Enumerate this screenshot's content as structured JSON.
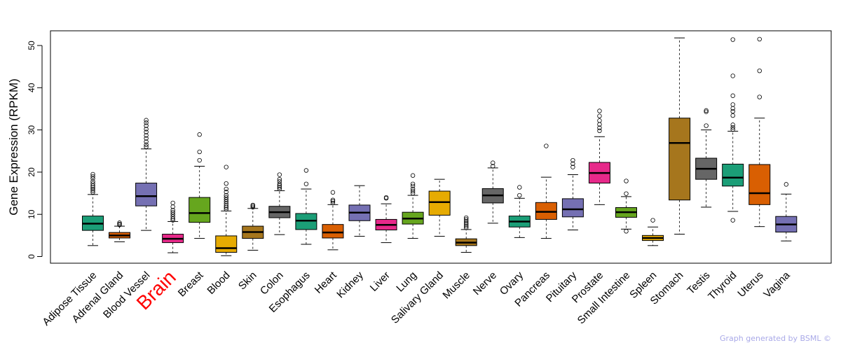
{
  "chart_data": {
    "type": "boxplot",
    "title": "",
    "ylabel": "Gene Expression (RPKM)",
    "xlabel": "",
    "ylim": [
      -1,
      54
    ],
    "yticks": [
      0,
      10,
      20,
      30,
      40,
      50
    ],
    "highlight_category": "Brain",
    "highlight_color": "#ff0000",
    "series": [
      {
        "name": "Adipose Tissue",
        "color": "#1b9e77",
        "min": 2.6,
        "q1": 6.2,
        "median": 7.8,
        "q3": 9.6,
        "max": 14.7,
        "outliers": [
          15.2,
          15.6,
          16.0,
          16.4,
          16.8,
          17.3,
          17.8,
          18.5,
          19.0,
          19.5
        ]
      },
      {
        "name": "Adrenal Gland",
        "color": "#d95f02",
        "min": 3.5,
        "q1": 4.4,
        "median": 5.0,
        "q3": 5.7,
        "max": 7.2,
        "outliers": [
          7.5,
          7.7,
          8.0
        ]
      },
      {
        "name": "Blood Vessel",
        "color": "#7570b3",
        "min": 6.2,
        "q1": 12.0,
        "median": 14.3,
        "q3": 17.4,
        "max": 25.5,
        "outliers": [
          26.0,
          26.5,
          27.2,
          28.0,
          28.7,
          29.5,
          30.2,
          31.0,
          31.7,
          32.3
        ]
      },
      {
        "name": "Brain",
        "color": "#e7298a",
        "min": 0.9,
        "q1": 3.3,
        "median": 4.2,
        "q3": 5.3,
        "max": 8.3,
        "outliers": [
          8.6,
          9.0,
          9.5,
          10.0,
          10.5,
          11.0,
          11.8,
          12.7
        ]
      },
      {
        "name": "Breast",
        "color": "#66a61e",
        "min": 4.3,
        "q1": 8.1,
        "median": 10.3,
        "q3": 14.0,
        "max": 21.4,
        "outliers": [
          22.8,
          24.8,
          28.9
        ]
      },
      {
        "name": "Blood",
        "color": "#e6ab02",
        "min": 0.2,
        "q1": 1.0,
        "median": 2.0,
        "q3": 4.9,
        "max": 10.8,
        "outliers": [
          11.2,
          11.6,
          12.0,
          12.5,
          13.0,
          13.5,
          14.0,
          14.5,
          15.3,
          16.0,
          17.3,
          21.2
        ]
      },
      {
        "name": "Skin",
        "color": "#a6761d",
        "min": 1.5,
        "q1": 4.3,
        "median": 5.8,
        "q3": 7.2,
        "max": 11.4,
        "outliers": [
          11.7,
          12.0,
          12.2
        ]
      },
      {
        "name": "Colon",
        "color": "#666666",
        "min": 5.2,
        "q1": 9.2,
        "median": 10.5,
        "q3": 11.9,
        "max": 15.6,
        "outliers": [
          16.0,
          16.4,
          16.8,
          17.2,
          17.8,
          18.3,
          19.4
        ]
      },
      {
        "name": "Esophagus",
        "color": "#1b9e77",
        "min": 2.9,
        "q1": 6.4,
        "median": 8.5,
        "q3": 10.2,
        "max": 16.0,
        "outliers": [
          17.2,
          20.4
        ]
      },
      {
        "name": "Heart",
        "color": "#d95f02",
        "min": 1.6,
        "q1": 4.4,
        "median": 5.7,
        "q3": 7.6,
        "max": 12.3,
        "outliers": [
          12.7,
          13.1,
          13.4,
          15.2
        ]
      },
      {
        "name": "Kidney",
        "color": "#7570b3",
        "min": 4.8,
        "q1": 8.5,
        "median": 10.4,
        "q3": 12.2,
        "max": 16.8,
        "outliers": []
      },
      {
        "name": "Liver",
        "color": "#e7298a",
        "min": 3.3,
        "q1": 6.3,
        "median": 7.5,
        "q3": 8.8,
        "max": 12.5,
        "outliers": [
          13.8,
          14.0
        ]
      },
      {
        "name": "Lung",
        "color": "#66a61e",
        "min": 4.3,
        "q1": 7.7,
        "median": 9.0,
        "q3": 10.5,
        "max": 14.5,
        "outliers": [
          15.0,
          15.5,
          16.0,
          16.7,
          17.2,
          19.2
        ]
      },
      {
        "name": "Salivary Gland",
        "color": "#e6ab02",
        "min": 4.8,
        "q1": 9.8,
        "median": 12.9,
        "q3": 15.5,
        "max": 18.3,
        "outliers": []
      },
      {
        "name": "Muscle",
        "color": "#a6761d",
        "min": 1.0,
        "q1": 2.6,
        "median": 3.3,
        "q3": 4.2,
        "max": 6.4,
        "outliers": [
          6.8,
          7.2,
          7.6,
          8.0,
          8.4,
          8.8,
          9.2
        ]
      },
      {
        "name": "Nerve",
        "color": "#666666",
        "min": 7.9,
        "q1": 12.7,
        "median": 14.5,
        "q3": 16.1,
        "max": 21.0,
        "outliers": [
          21.4,
          22.2
        ]
      },
      {
        "name": "Ovary",
        "color": "#1b9e77",
        "min": 4.5,
        "q1": 7.0,
        "median": 8.3,
        "q3": 9.6,
        "max": 13.8,
        "outliers": [
          14.5,
          16.4
        ]
      },
      {
        "name": "Pancreas",
        "color": "#d95f02",
        "min": 4.3,
        "q1": 8.8,
        "median": 10.6,
        "q3": 12.8,
        "max": 18.8,
        "outliers": [
          26.2
        ]
      },
      {
        "name": "Pituitary",
        "color": "#7570b3",
        "min": 6.3,
        "q1": 9.4,
        "median": 11.2,
        "q3": 13.7,
        "max": 19.4,
        "outliers": [
          21.2,
          22.0,
          22.8
        ]
      },
      {
        "name": "Prostate",
        "color": "#e7298a",
        "min": 12.3,
        "q1": 17.4,
        "median": 19.8,
        "q3": 22.3,
        "max": 28.4,
        "outliers": [
          29.8,
          30.5,
          31.3,
          32.2,
          33.3,
          34.5
        ]
      },
      {
        "name": "Small Intestine",
        "color": "#66a61e",
        "min": 6.5,
        "q1": 9.3,
        "median": 10.5,
        "q3": 11.6,
        "max": 14.2,
        "outliers": [
          6.0,
          14.9,
          17.9
        ]
      },
      {
        "name": "Spleen",
        "color": "#e6ab02",
        "min": 2.6,
        "q1": 3.8,
        "median": 4.4,
        "q3": 5.0,
        "max": 7.0,
        "outliers": [
          8.6
        ]
      },
      {
        "name": "Stomach",
        "color": "#a6761d",
        "min": 5.3,
        "q1": 13.4,
        "median": 26.9,
        "q3": 32.8,
        "max": 51.8,
        "outliers": []
      },
      {
        "name": "Testis",
        "color": "#666666",
        "min": 11.7,
        "q1": 18.3,
        "median": 20.8,
        "q3": 23.3,
        "max": 30.0,
        "outliers": [
          31.0,
          34.3,
          34.6
        ]
      },
      {
        "name": "Thyroid",
        "color": "#1b9e77",
        "min": 10.7,
        "q1": 16.7,
        "median": 18.7,
        "q3": 21.9,
        "max": 29.7,
        "outliers": [
          8.6,
          30.1,
          30.6,
          31.2,
          33.4,
          34.4,
          35.1,
          36.0,
          38.1,
          42.8,
          51.4
        ]
      },
      {
        "name": "Uterus",
        "color": "#d95f02",
        "min": 7.1,
        "q1": 12.3,
        "median": 15.0,
        "q3": 21.8,
        "max": 32.8,
        "outliers": [
          37.8,
          44.0,
          51.5
        ]
      },
      {
        "name": "Vagina",
        "color": "#7570b3",
        "min": 3.7,
        "q1": 5.8,
        "median": 7.6,
        "q3": 9.5,
        "max": 14.8,
        "outliers": [
          17.1
        ]
      }
    ]
  },
  "credit": "Graph generated by BSML ©"
}
